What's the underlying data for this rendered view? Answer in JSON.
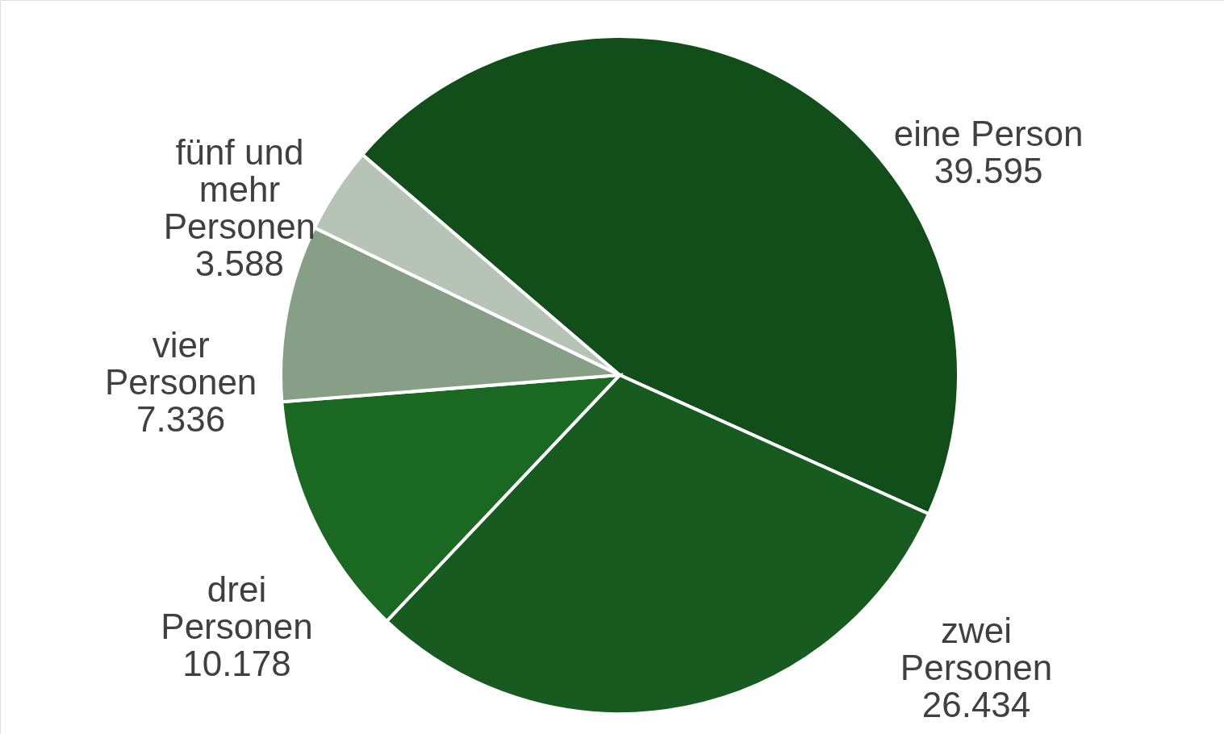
{
  "chart_data": {
    "type": "pie",
    "categories": [
      "eine Person",
      "zwei Personen",
      "drei Personen",
      "vier Personen",
      "fünf und mehr Personen"
    ],
    "values": [
      39595,
      26434,
      10178,
      7336,
      3588
    ],
    "value_labels": [
      "39.595",
      "26.434",
      "10.178",
      "7.336",
      "3.588"
    ],
    "colors": [
      "#124e1a",
      "#185b20",
      "#1b6823",
      "#879e87",
      "#b8c3b8"
    ]
  }
}
